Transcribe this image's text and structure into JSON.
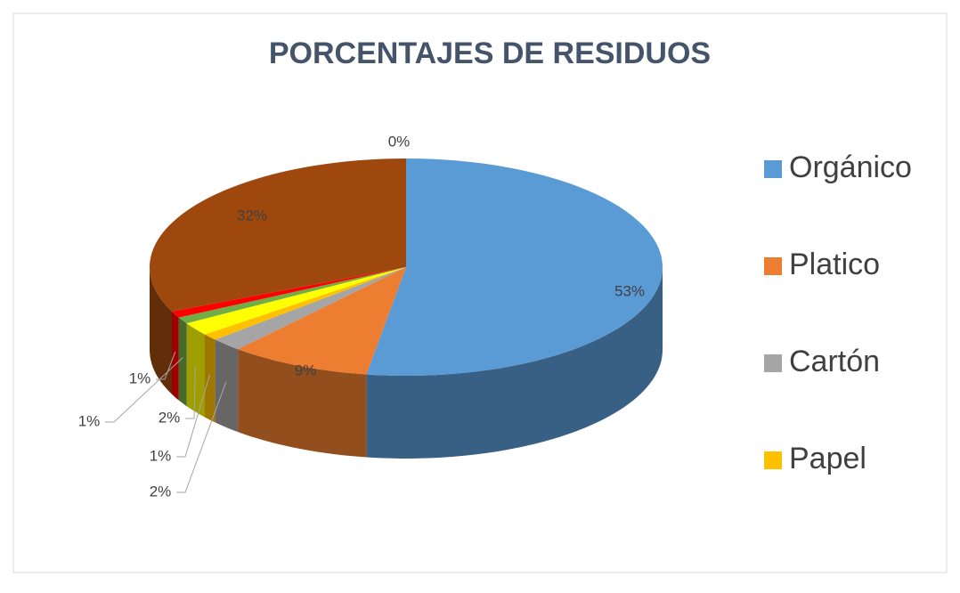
{
  "chart_data": {
    "type": "pie3d",
    "title": "PORCENTAJES DE RESIDUOS",
    "categories": [
      "Orgánico",
      "Platico",
      "Cartón",
      "Papel",
      null,
      null,
      null,
      null,
      null
    ],
    "values": [
      53,
      9,
      2,
      1,
      2,
      1,
      1,
      32,
      0
    ],
    "value_labels": [
      "53%",
      "9%",
      "2%",
      "1%",
      "2%",
      "1%",
      "1%",
      "32%",
      "0%"
    ],
    "colors": [
      "#5b9bd5",
      "#ed7d31",
      "#a5a5a5",
      "#ffc000",
      "#ffff00",
      "#70ad47",
      "#ff0000",
      "#9e480e",
      "#4472c4"
    ],
    "legend": "right"
  }
}
